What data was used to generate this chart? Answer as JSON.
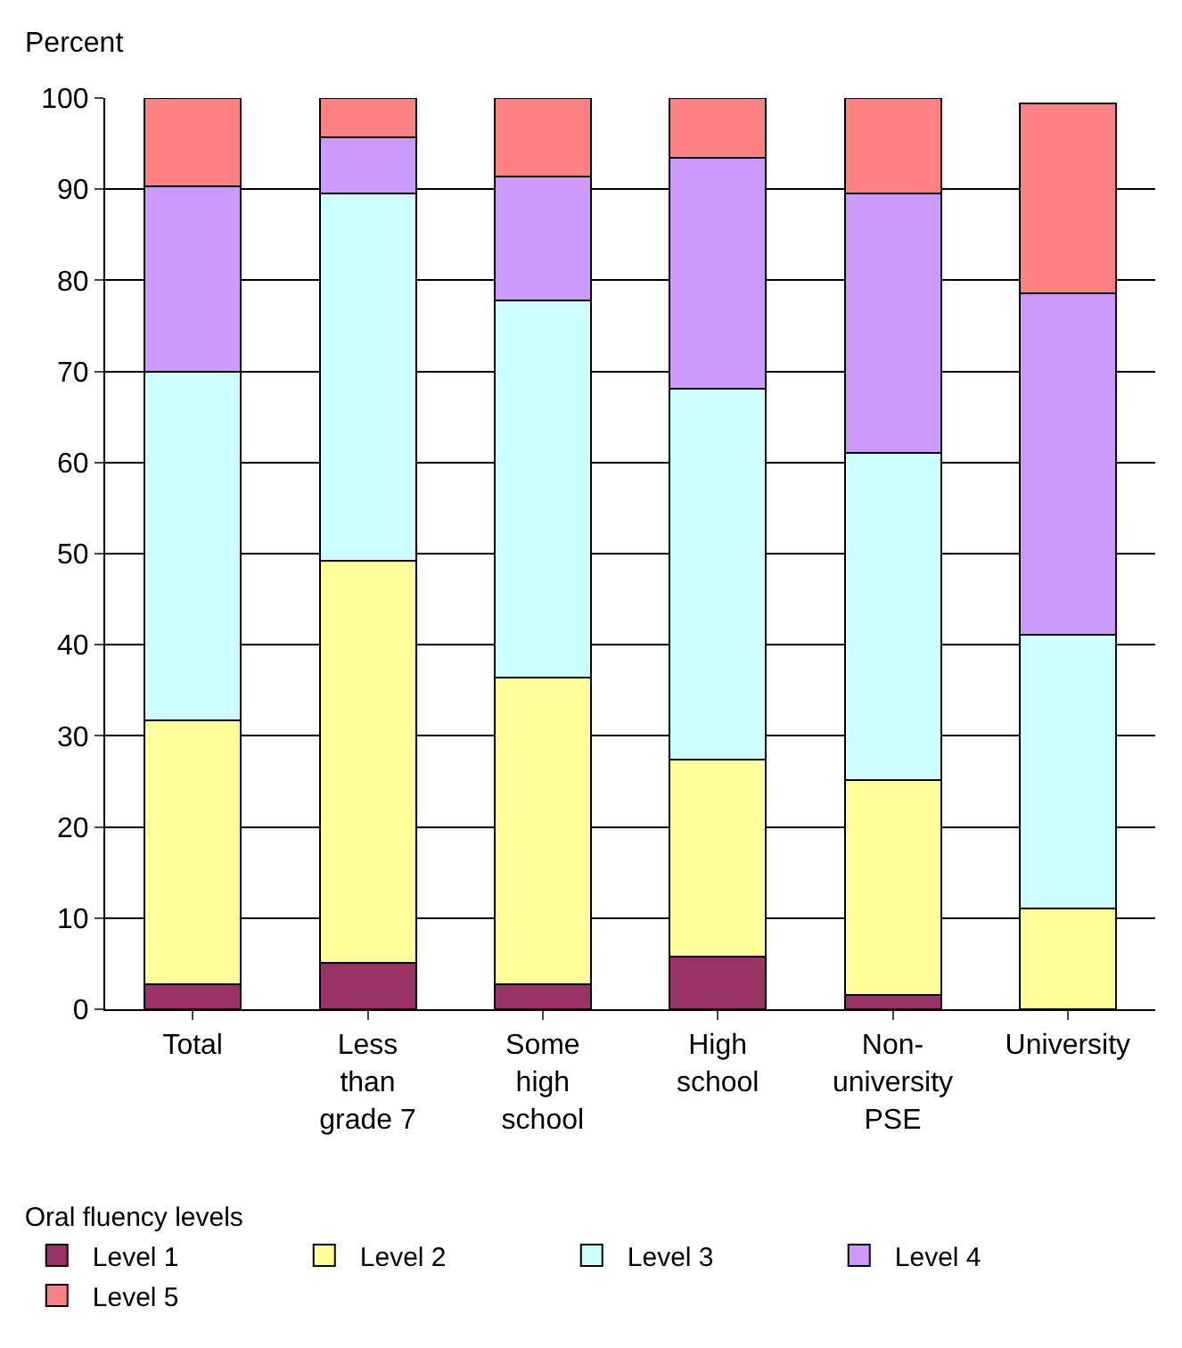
{
  "chart_data": {
    "type": "bar",
    "stacked": true,
    "ylabel": "Percent",
    "legend_title": "Oral fluency levels",
    "categories": [
      "Total",
      "Less\nthan\ngrade 7",
      "Some\nhigh\nschool",
      "High\nschool",
      "Non-\nuniversity\nPSE",
      "University"
    ],
    "series": [
      {
        "name": "Level 1",
        "color": "#993366",
        "values": [
          2.7,
          5.1,
          2.7,
          5.8,
          1.6,
          0
        ]
      },
      {
        "name": "Level 2",
        "color": "#ffff99",
        "values": [
          29.0,
          44.1,
          33.7,
          21.6,
          23.5,
          11.1
        ]
      },
      {
        "name": "Level 3",
        "color": "#ccffff",
        "values": [
          38.3,
          40.3,
          41.4,
          40.7,
          36.0,
          30.0
        ]
      },
      {
        "name": "Level 4",
        "color": "#cc99ff",
        "values": [
          20.3,
          6.2,
          13.6,
          25.3,
          28.4,
          37.5
        ]
      },
      {
        "name": "Level 5",
        "color": "#ff8080",
        "values": [
          9.7,
          4.3,
          8.6,
          6.6,
          10.5,
          20.8
        ]
      }
    ],
    "ylim": [
      0,
      100
    ],
    "yticks": [
      0,
      10,
      20,
      30,
      40,
      50,
      60,
      70,
      80,
      90,
      100
    ],
    "grid": "y",
    "legend": "bottom"
  }
}
